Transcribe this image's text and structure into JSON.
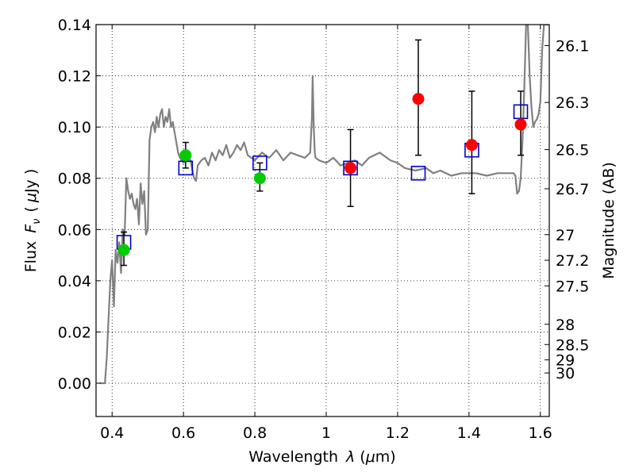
{
  "chart_data": {
    "type": "scatter",
    "xlabel": "Wavelength",
    "xlabel_symbol": "λ",
    "xlabel_unit_open": "(",
    "xlabel_unit_mu": "μ",
    "xlabel_unit_rest": "m)",
    "ylabel": "Flux",
    "ylabel_symbol": "F",
    "ylabel_symbol_sub": "ν",
    "ylabel_unit_open": "(",
    "ylabel_unit_mu": "μ",
    "ylabel_unit_rest": "Jy )",
    "y2label": "Magnitude (AB)",
    "xlim": [
      0.355,
      1.625
    ],
    "ylim": [
      -0.013,
      0.14
    ],
    "grid": true,
    "x_ticks": [
      {
        "value": 0.4,
        "label": "0.4"
      },
      {
        "value": 0.6,
        "label": "0.6"
      },
      {
        "value": 0.8,
        "label": "0.8"
      },
      {
        "value": 1.0,
        "label": "1"
      },
      {
        "value": 1.2,
        "label": "1.2"
      },
      {
        "value": 1.4,
        "label": "1.4"
      },
      {
        "value": 1.6,
        "label": "1.6"
      }
    ],
    "y_ticks": [
      {
        "value": 0.0,
        "label": "0.00"
      },
      {
        "value": 0.02,
        "label": "0.02"
      },
      {
        "value": 0.04,
        "label": "0.04"
      },
      {
        "value": 0.06,
        "label": "0.06"
      },
      {
        "value": 0.08,
        "label": "0.08"
      },
      {
        "value": 0.1,
        "label": "0.10"
      },
      {
        "value": 0.12,
        "label": "0.12"
      },
      {
        "value": 0.14,
        "label": "0.14"
      }
    ],
    "y2_ticks": [
      {
        "flux": 0.1318,
        "label": "26.1"
      },
      {
        "flux": 0.1096,
        "label": "26.3"
      },
      {
        "flux": 0.0912,
        "label": "26.5"
      },
      {
        "flux": 0.0759,
        "label": "26.7"
      },
      {
        "flux": 0.058,
        "label": "27"
      },
      {
        "flux": 0.048,
        "label": "27.2"
      },
      {
        "flux": 0.038,
        "label": "27.5"
      },
      {
        "flux": 0.023,
        "label": "28"
      },
      {
        "flux": 0.0151,
        "label": "28.5"
      },
      {
        "flux": 0.0091,
        "label": "29"
      },
      {
        "flux": 0.004,
        "label": "30"
      }
    ],
    "series": [
      {
        "kind": "line",
        "color": "#808080",
        "x": [
          0.365,
          0.37,
          0.375,
          0.38,
          0.385,
          0.39,
          0.395,
          0.4,
          0.405,
          0.41,
          0.415,
          0.42,
          0.425,
          0.43,
          0.435,
          0.44,
          0.445,
          0.45,
          0.455,
          0.46,
          0.465,
          0.47,
          0.475,
          0.48,
          0.485,
          0.49,
          0.495,
          0.5,
          0.505,
          0.51,
          0.515,
          0.52,
          0.525,
          0.53,
          0.535,
          0.54,
          0.545,
          0.55,
          0.555,
          0.56,
          0.565,
          0.57,
          0.575,
          0.58,
          0.585,
          0.59,
          0.6,
          0.61,
          0.62,
          0.625,
          0.63,
          0.635,
          0.64,
          0.65,
          0.66,
          0.67,
          0.68,
          0.69,
          0.7,
          0.71,
          0.72,
          0.73,
          0.74,
          0.75,
          0.76,
          0.77,
          0.78,
          0.8,
          0.82,
          0.84,
          0.86,
          0.88,
          0.9,
          0.92,
          0.94,
          0.955,
          0.96,
          0.962,
          0.965,
          0.968,
          0.97,
          0.98,
          1.0,
          1.02,
          1.04,
          1.06,
          1.08,
          1.1,
          1.12,
          1.15,
          1.18,
          1.2,
          1.22,
          1.25,
          1.28,
          1.3,
          1.32,
          1.35,
          1.38,
          1.4,
          1.42,
          1.45,
          1.48,
          1.5,
          1.52,
          1.525,
          1.53,
          1.535,
          1.54,
          1.545,
          1.55,
          1.555,
          1.56,
          1.565,
          1.57,
          1.575,
          1.58,
          1.585,
          1.59,
          1.595,
          1.6,
          1.605,
          1.61,
          1.615,
          1.62,
          1.625
        ],
        "y": [
          0.0,
          0.0,
          0.0,
          0.0,
          0.01,
          0.025,
          0.04,
          0.048,
          0.03,
          0.052,
          0.047,
          0.055,
          0.043,
          0.06,
          0.058,
          0.08,
          0.075,
          0.072,
          0.074,
          0.07,
          0.068,
          0.072,
          0.062,
          0.078,
          0.07,
          0.075,
          0.058,
          0.06,
          0.095,
          0.1,
          0.102,
          0.098,
          0.104,
          0.1,
          0.105,
          0.107,
          0.1,
          0.104,
          0.102,
          0.107,
          0.1,
          0.102,
          0.098,
          0.094,
          0.09,
          0.088,
          0.086,
          0.088,
          0.087,
          0.083,
          0.08,
          0.079,
          0.085,
          0.087,
          0.088,
          0.085,
          0.09,
          0.087,
          0.091,
          0.089,
          0.093,
          0.088,
          0.09,
          0.093,
          0.091,
          0.094,
          0.089,
          0.087,
          0.09,
          0.088,
          0.091,
          0.087,
          0.09,
          0.089,
          0.088,
          0.09,
          0.104,
          0.12,
          0.1,
          0.09,
          0.088,
          0.087,
          0.086,
          0.088,
          0.085,
          0.086,
          0.087,
          0.085,
          0.088,
          0.09,
          0.087,
          0.086,
          0.084,
          0.083,
          0.084,
          0.082,
          0.083,
          0.081,
          0.082,
          0.082,
          0.082,
          0.081,
          0.082,
          0.082,
          0.082,
          0.082,
          0.081,
          0.074,
          0.075,
          0.08,
          0.095,
          0.115,
          0.14,
          0.14,
          0.12,
          0.108,
          0.1,
          0.102,
          0.103,
          0.105,
          0.11,
          0.13,
          0.14,
          0.14,
          0.14,
          0.14
        ]
      },
      {
        "kind": "errorbar",
        "color": "#000000",
        "points": [
          {
            "x": 0.433,
            "low": 0.046,
            "high": 0.059
          },
          {
            "x": 0.606,
            "low": 0.084,
            "high": 0.094
          },
          {
            "x": 0.814,
            "low": 0.075,
            "high": 0.086
          },
          {
            "x": 1.068,
            "low": 0.069,
            "high": 0.099
          },
          {
            "x": 1.258,
            "low": 0.089,
            "high": 0.134
          },
          {
            "x": 1.408,
            "low": 0.074,
            "high": 0.114
          },
          {
            "x": 1.545,
            "low": 0.089,
            "high": 0.114
          }
        ]
      },
      {
        "kind": "square-open",
        "color": "#0000cc",
        "x": [
          0.433,
          0.606,
          0.814,
          1.068,
          1.258,
          1.408,
          1.545
        ],
        "y": [
          0.055,
          0.084,
          0.086,
          0.084,
          0.082,
          0.091,
          0.106
        ]
      },
      {
        "kind": "circle-filled",
        "color": "#00cc00",
        "x": [
          0.433,
          0.606,
          0.814
        ],
        "y": [
          0.052,
          0.089,
          0.08
        ]
      },
      {
        "kind": "circle-filled",
        "color": "#ff0000",
        "x": [
          1.068,
          1.258,
          1.408,
          1.545
        ],
        "y": [
          0.084,
          0.111,
          0.093,
          0.101
        ]
      }
    ]
  }
}
